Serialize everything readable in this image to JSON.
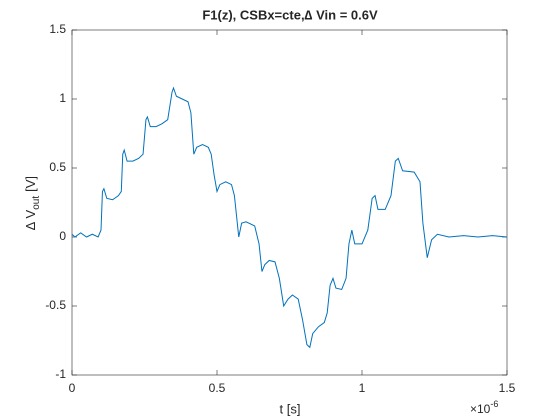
{
  "chart_data": {
    "type": "line",
    "title": "F1(z), CSBx=cte,∆ Vin = 0.6V",
    "xlabel": "t [s]",
    "ylabel": [
      "∆ V",
      "out",
      "[V]"
    ],
    "x_exponent": {
      "base": "×10",
      "power": "-6"
    },
    "xlim": [
      0,
      1.5
    ],
    "ylim": [
      -1,
      1.5
    ],
    "xticks": [
      0,
      0.5,
      1,
      1.5
    ],
    "yticks": [
      -1,
      -0.5,
      0,
      0.5,
      1,
      1.5
    ],
    "grid": false,
    "color": "#0072bd",
    "x": [
      0,
      0.01,
      0.03,
      0.05,
      0.07,
      0.09,
      0.1,
      0.105,
      0.11,
      0.12,
      0.14,
      0.16,
      0.17,
      0.175,
      0.18,
      0.19,
      0.21,
      0.23,
      0.245,
      0.255,
      0.26,
      0.27,
      0.29,
      0.31,
      0.33,
      0.345,
      0.35,
      0.36,
      0.38,
      0.4,
      0.41,
      0.42,
      0.43,
      0.45,
      0.47,
      0.48,
      0.49,
      0.5,
      0.51,
      0.53,
      0.55,
      0.56,
      0.57,
      0.575,
      0.585,
      0.6,
      0.63,
      0.645,
      0.655,
      0.665,
      0.68,
      0.7,
      0.715,
      0.73,
      0.745,
      0.76,
      0.78,
      0.795,
      0.81,
      0.82,
      0.83,
      0.85,
      0.87,
      0.88,
      0.89,
      0.9,
      0.91,
      0.93,
      0.945,
      0.955,
      0.965,
      0.975,
      1.0,
      1.02,
      1.035,
      1.045,
      1.055,
      1.08,
      1.1,
      1.115,
      1.125,
      1.14,
      1.18,
      1.2,
      1.21,
      1.225,
      1.24,
      1.26,
      1.3,
      1.35,
      1.4,
      1.45,
      1.5
    ],
    "y": [
      0.02,
      0.0,
      0.03,
      0.0,
      0.02,
      0.0,
      0.05,
      0.33,
      0.35,
      0.28,
      0.27,
      0.3,
      0.33,
      0.6,
      0.63,
      0.55,
      0.55,
      0.57,
      0.6,
      0.85,
      0.87,
      0.8,
      0.8,
      0.82,
      0.85,
      1.05,
      1.08,
      1.02,
      1.0,
      0.98,
      0.9,
      0.6,
      0.65,
      0.67,
      0.65,
      0.6,
      0.45,
      0.33,
      0.38,
      0.4,
      0.38,
      0.3,
      0.1,
      0.0,
      0.1,
      0.11,
      0.08,
      -0.05,
      -0.25,
      -0.2,
      -0.17,
      -0.18,
      -0.3,
      -0.5,
      -0.45,
      -0.42,
      -0.45,
      -0.6,
      -0.78,
      -0.8,
      -0.7,
      -0.65,
      -0.62,
      -0.55,
      -0.35,
      -0.3,
      -0.37,
      -0.38,
      -0.3,
      -0.05,
      0.05,
      -0.05,
      -0.05,
      0.05,
      0.28,
      0.3,
      0.2,
      0.2,
      0.3,
      0.55,
      0.57,
      0.48,
      0.47,
      0.4,
      0.1,
      -0.15,
      -0.02,
      0.02,
      0.0,
      0.01,
      0.0,
      0.01,
      0.0
    ]
  }
}
